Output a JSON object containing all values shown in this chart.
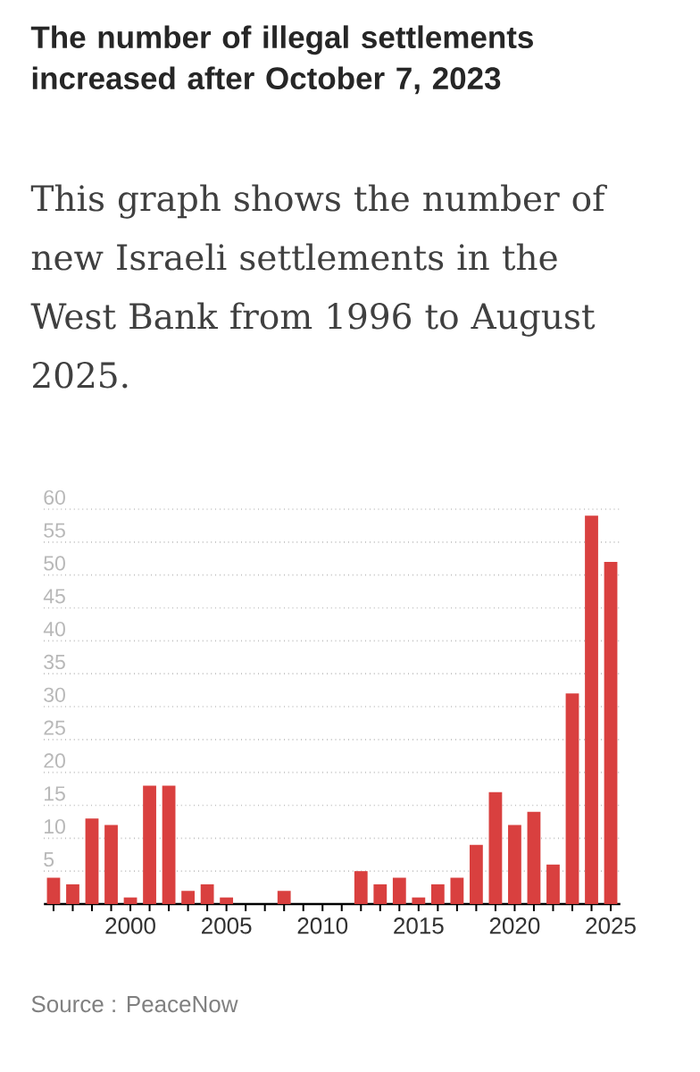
{
  "chart_data": {
    "type": "bar",
    "title": "The number of illegal settlements increased after October 7, 2023",
    "subtitle": "This graph shows the number of new Israeli settlements in the West Bank from 1996 to August 2025.",
    "annotations": [
      "Source : PeaceNow"
    ],
    "x": [
      1996,
      1997,
      1998,
      1999,
      2000,
      2001,
      2002,
      2003,
      2004,
      2005,
      2006,
      2007,
      2008,
      2009,
      2010,
      2011,
      2012,
      2013,
      2014,
      2015,
      2016,
      2017,
      2018,
      2019,
      2020,
      2021,
      2022,
      2023,
      2024,
      2025
    ],
    "values": [
      4,
      3,
      13,
      12,
      1,
      18,
      18,
      2,
      3,
      1,
      0,
      0,
      2,
      0,
      0,
      0,
      5,
      3,
      4,
      1,
      3,
      4,
      9,
      17,
      12,
      14,
      6,
      32,
      59,
      52
    ],
    "color": "#d9403f",
    "xlim": [
      1995.5,
      2025.5
    ],
    "xticks": [
      {
        "value": 1996,
        "label": null
      },
      {
        "value": 1997,
        "label": null
      },
      {
        "value": 1998,
        "label": null
      },
      {
        "value": 1999,
        "label": null
      },
      2000,
      {
        "value": 2001,
        "label": null
      },
      {
        "value": 2002,
        "label": null
      },
      {
        "value": 2003,
        "label": null
      },
      {
        "value": 2004,
        "label": null
      },
      2005,
      {
        "value": 2006,
        "label": null
      },
      {
        "value": 2007,
        "label": null
      },
      {
        "value": 2008,
        "label": null
      },
      {
        "value": 2009,
        "label": null
      },
      2010,
      {
        "value": 2011,
        "label": null
      },
      {
        "value": 2012,
        "label": null
      },
      {
        "value": 2013,
        "label": null
      },
      {
        "value": 2014,
        "label": null
      },
      2015,
      {
        "value": 2016,
        "label": null
      },
      {
        "value": 2017,
        "label": null
      },
      {
        "value": 2018,
        "label": null
      },
      {
        "value": 2019,
        "label": null
      },
      2020,
      {
        "value": 2021,
        "label": null
      },
      {
        "value": 2022,
        "label": null
      },
      {
        "value": 2023,
        "label": null
      },
      {
        "value": 2024,
        "label": null
      },
      2025
    ],
    "ylim": [
      0,
      60
    ],
    "yticks": [
      5,
      10,
      15,
      20,
      25,
      30,
      35,
      40,
      45,
      50,
      55,
      60
    ],
    "grid": "y"
  }
}
